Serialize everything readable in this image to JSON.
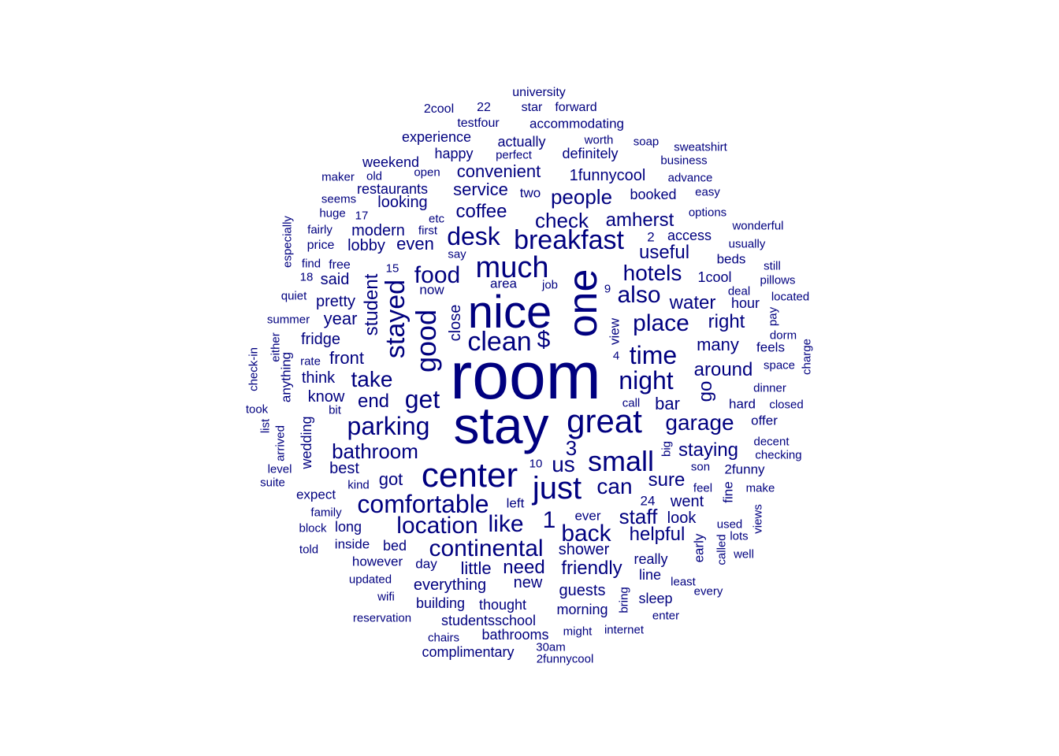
{
  "word_color": "#00007f",
  "words": [
    {
      "text": "room",
      "weight": 84
    },
    {
      "text": "stay",
      "weight": 66
    },
    {
      "text": "nice",
      "weight": 58
    },
    {
      "text": "one",
      "weight": 52,
      "vertical": true
    },
    {
      "text": "center",
      "weight": 44
    },
    {
      "text": "great",
      "weight": 42
    },
    {
      "text": "just",
      "weight": 40
    },
    {
      "text": "much",
      "weight": 38
    },
    {
      "text": "small",
      "weight": 36
    },
    {
      "text": "breakfast",
      "weight": 34
    },
    {
      "text": "clean",
      "weight": 34
    },
    {
      "text": "comfortable",
      "weight": 32
    },
    {
      "text": "good",
      "weight": 36,
      "vertical": true
    },
    {
      "text": "stayed",
      "weight": 34,
      "vertical": true
    },
    {
      "text": "parking",
      "weight": 32
    },
    {
      "text": "desk",
      "weight": 32
    },
    {
      "text": "continental",
      "weight": 30
    },
    {
      "text": "location",
      "weight": 30
    },
    {
      "text": "like",
      "weight": 30
    },
    {
      "text": "night",
      "weight": 32
    },
    {
      "text": "time",
      "weight": 32
    },
    {
      "text": "back",
      "weight": 30
    },
    {
      "text": "get",
      "weight": 32
    },
    {
      "text": "food",
      "weight": 30
    },
    {
      "text": "place",
      "weight": 30
    },
    {
      "text": "also",
      "weight": 30
    },
    {
      "text": "hotels",
      "weight": 28
    },
    {
      "text": "garage",
      "weight": 28
    },
    {
      "text": "$",
      "weight": 30
    },
    {
      "text": "1",
      "weight": 30
    },
    {
      "text": "us",
      "weight": 28
    },
    {
      "text": "3",
      "weight": 26
    },
    {
      "text": "take",
      "weight": 28
    },
    {
      "text": "people",
      "weight": 26
    },
    {
      "text": "bathroom",
      "weight": 26
    },
    {
      "text": "check",
      "weight": 26
    },
    {
      "text": "amherst",
      "weight": 24
    },
    {
      "text": "can",
      "weight": 28
    },
    {
      "text": "staff",
      "weight": 26
    },
    {
      "text": "helpful",
      "weight": 24
    },
    {
      "text": "friendly",
      "weight": 24
    },
    {
      "text": "sure",
      "weight": 24
    },
    {
      "text": "staying",
      "weight": 24
    },
    {
      "text": "around",
      "weight": 24
    },
    {
      "text": "many",
      "weight": 22
    },
    {
      "text": "right",
      "weight": 24
    },
    {
      "text": "water",
      "weight": 24
    },
    {
      "text": "useful",
      "weight": 24
    },
    {
      "text": "need",
      "weight": 24
    },
    {
      "text": "little",
      "weight": 22
    },
    {
      "text": "coffee",
      "weight": 24
    },
    {
      "text": "convenient",
      "weight": 22
    },
    {
      "text": "service",
      "weight": 22
    },
    {
      "text": "even",
      "weight": 22
    },
    {
      "text": "end",
      "weight": 24
    },
    {
      "text": "front",
      "weight": 22
    },
    {
      "text": "fridge",
      "weight": 20
    },
    {
      "text": "year",
      "weight": 22
    },
    {
      "text": "pretty",
      "weight": 20
    },
    {
      "text": "said",
      "weight": 20
    },
    {
      "text": "modern",
      "weight": 20
    },
    {
      "text": "lobby",
      "weight": 20
    },
    {
      "text": "looking",
      "weight": 20
    },
    {
      "text": "restaurants",
      "weight": 18
    },
    {
      "text": "got",
      "weight": 22
    },
    {
      "text": "best",
      "weight": 20
    },
    {
      "text": "know",
      "weight": 20
    },
    {
      "text": "think",
      "weight": 20
    },
    {
      "text": "bar",
      "weight": 22
    },
    {
      "text": "went",
      "weight": 20
    },
    {
      "text": "look",
      "weight": 20
    },
    {
      "text": "shower",
      "weight": 20
    },
    {
      "text": "guests",
      "weight": 20
    },
    {
      "text": "everything",
      "weight": 20
    },
    {
      "text": "new",
      "weight": 20
    },
    {
      "text": "morning",
      "weight": 18
    },
    {
      "text": "building",
      "weight": 18
    },
    {
      "text": "thought",
      "weight": 18
    },
    {
      "text": "studentsschool",
      "weight": 18
    },
    {
      "text": "bathrooms",
      "weight": 18
    },
    {
      "text": "complimentary",
      "weight": 18
    },
    {
      "text": "bed",
      "weight": 18
    },
    {
      "text": "inside",
      "weight": 17
    },
    {
      "text": "long",
      "weight": 18
    },
    {
      "text": "however",
      "weight": 17
    },
    {
      "text": "day",
      "weight": 17
    },
    {
      "text": "really",
      "weight": 18
    },
    {
      "text": "line",
      "weight": 18
    },
    {
      "text": "sleep",
      "weight": 18
    },
    {
      "text": "ever",
      "weight": 17
    },
    {
      "text": "left",
      "weight": 17
    },
    {
      "text": "expect",
      "weight": 17
    },
    {
      "text": "area",
      "weight": 17
    },
    {
      "text": "now",
      "weight": 17
    },
    {
      "text": "booked",
      "weight": 18
    },
    {
      "text": "two",
      "weight": 17
    },
    {
      "text": "access",
      "weight": 18
    },
    {
      "text": "1cool",
      "weight": 18
    },
    {
      "text": "hour",
      "weight": 18
    },
    {
      "text": "beds",
      "weight": 17
    },
    {
      "text": "feels",
      "weight": 17
    },
    {
      "text": "hard",
      "weight": 17
    },
    {
      "text": "offer",
      "weight": 17
    },
    {
      "text": "2funny",
      "weight": 17
    },
    {
      "text": "1funnycool",
      "weight": 20
    },
    {
      "text": "definitely",
      "weight": 18
    },
    {
      "text": "actually",
      "weight": 18
    },
    {
      "text": "happy",
      "weight": 18
    },
    {
      "text": "experience",
      "weight": 18
    },
    {
      "text": "weekend",
      "weight": 18
    },
    {
      "text": "accommodating",
      "weight": 17
    },
    {
      "text": "university",
      "weight": 16
    },
    {
      "text": "star",
      "weight": 16
    },
    {
      "text": "forward",
      "weight": 16
    },
    {
      "text": "2cool",
      "weight": 16
    },
    {
      "text": "22",
      "weight": 16
    },
    {
      "text": "testfour",
      "weight": 16
    },
    {
      "text": "worth",
      "weight": 15
    },
    {
      "text": "soap",
      "weight": 15
    },
    {
      "text": "sweatshirt",
      "weight": 15
    },
    {
      "text": "business",
      "weight": 15
    },
    {
      "text": "perfect",
      "weight": 15
    },
    {
      "text": "advance",
      "weight": 15
    },
    {
      "text": "easy",
      "weight": 15
    },
    {
      "text": "options",
      "weight": 15
    },
    {
      "text": "wonderful",
      "weight": 15
    },
    {
      "text": "usually",
      "weight": 15
    },
    {
      "text": "still",
      "weight": 15
    },
    {
      "text": "pillows",
      "weight": 15
    },
    {
      "text": "located",
      "weight": 15
    },
    {
      "text": "deal",
      "weight": 15
    },
    {
      "text": "dorm",
      "weight": 15
    },
    {
      "text": "space",
      "weight": 15
    },
    {
      "text": "dinner",
      "weight": 15
    },
    {
      "text": "closed",
      "weight": 15
    },
    {
      "text": "decent",
      "weight": 15
    },
    {
      "text": "checking",
      "weight": 15
    },
    {
      "text": "son",
      "weight": 15
    },
    {
      "text": "feel",
      "weight": 15
    },
    {
      "text": "make",
      "weight": 15
    },
    {
      "text": "used",
      "weight": 15
    },
    {
      "text": "lots",
      "weight": 15
    },
    {
      "text": "well",
      "weight": 15
    },
    {
      "text": "every",
      "weight": 15
    },
    {
      "text": "least",
      "weight": 15
    },
    {
      "text": "enter",
      "weight": 15
    },
    {
      "text": "internet",
      "weight": 15
    },
    {
      "text": "might",
      "weight": 15
    },
    {
      "text": "chairs",
      "weight": 15
    },
    {
      "text": "30am",
      "weight": 15
    },
    {
      "text": "2funnycool",
      "weight": 15
    },
    {
      "text": "reservation",
      "weight": 15
    },
    {
      "text": "wifi",
      "weight": 15
    },
    {
      "text": "updated",
      "weight": 15
    },
    {
      "text": "told",
      "weight": 15
    },
    {
      "text": "block",
      "weight": 15
    },
    {
      "text": "family",
      "weight": 15
    },
    {
      "text": "kind",
      "weight": 15
    },
    {
      "text": "suite",
      "weight": 15
    },
    {
      "text": "level",
      "weight": 15
    },
    {
      "text": "took",
      "weight": 15
    },
    {
      "text": "bit",
      "weight": 15
    },
    {
      "text": "rate",
      "weight": 15
    },
    {
      "text": "summer",
      "weight": 15
    },
    {
      "text": "quiet",
      "weight": 15
    },
    {
      "text": "18",
      "weight": 15
    },
    {
      "text": "find",
      "weight": 15
    },
    {
      "text": "free",
      "weight": 16
    },
    {
      "text": "15",
      "weight": 15
    },
    {
      "text": "price",
      "weight": 16
    },
    {
      "text": "fairly",
      "weight": 15
    },
    {
      "text": "huge",
      "weight": 15
    },
    {
      "text": "17",
      "weight": 15
    },
    {
      "text": "seems",
      "weight": 15
    },
    {
      "text": "maker",
      "weight": 15
    },
    {
      "text": "old",
      "weight": 15
    },
    {
      "text": "open",
      "weight": 15
    },
    {
      "text": "etc",
      "weight": 15
    },
    {
      "text": "first",
      "weight": 15
    },
    {
      "text": "say",
      "weight": 15
    },
    {
      "text": "job",
      "weight": 15
    },
    {
      "text": "9",
      "weight": 15
    },
    {
      "text": "4",
      "weight": 15
    },
    {
      "text": "call",
      "weight": 15
    },
    {
      "text": "10",
      "weight": 15
    },
    {
      "text": "24",
      "weight": 17
    },
    {
      "text": "2",
      "weight": 17
    },
    {
      "text": "student",
      "weight": 24,
      "vertical": true
    },
    {
      "text": "close",
      "weight": 20,
      "vertical": true
    },
    {
      "text": "go",
      "weight": 24,
      "vertical": true
    },
    {
      "text": "view",
      "weight": 17,
      "vertical": true
    },
    {
      "text": "wedding",
      "weight": 18,
      "vertical": true
    },
    {
      "text": "anything",
      "weight": 17,
      "vertical": true
    },
    {
      "text": "either",
      "weight": 15,
      "vertical": true
    },
    {
      "text": "check-in",
      "weight": 15,
      "vertical": true
    },
    {
      "text": "list",
      "weight": 15,
      "vertical": true
    },
    {
      "text": "arrived",
      "weight": 15,
      "vertical": true
    },
    {
      "text": "especially",
      "weight": 15,
      "vertical": true
    },
    {
      "text": "fine",
      "weight": 17,
      "vertical": true
    },
    {
      "text": "early",
      "weight": 17,
      "vertical": true
    },
    {
      "text": "called",
      "weight": 15,
      "vertical": true
    },
    {
      "text": "views",
      "weight": 15,
      "vertical": true
    },
    {
      "text": "bring",
      "weight": 15,
      "vertical": true
    },
    {
      "text": "big",
      "weight": 15,
      "vertical": true
    },
    {
      "text": "pay",
      "weight": 15,
      "vertical": true
    },
    {
      "text": "charge",
      "weight": 15,
      "vertical": true
    }
  ]
}
